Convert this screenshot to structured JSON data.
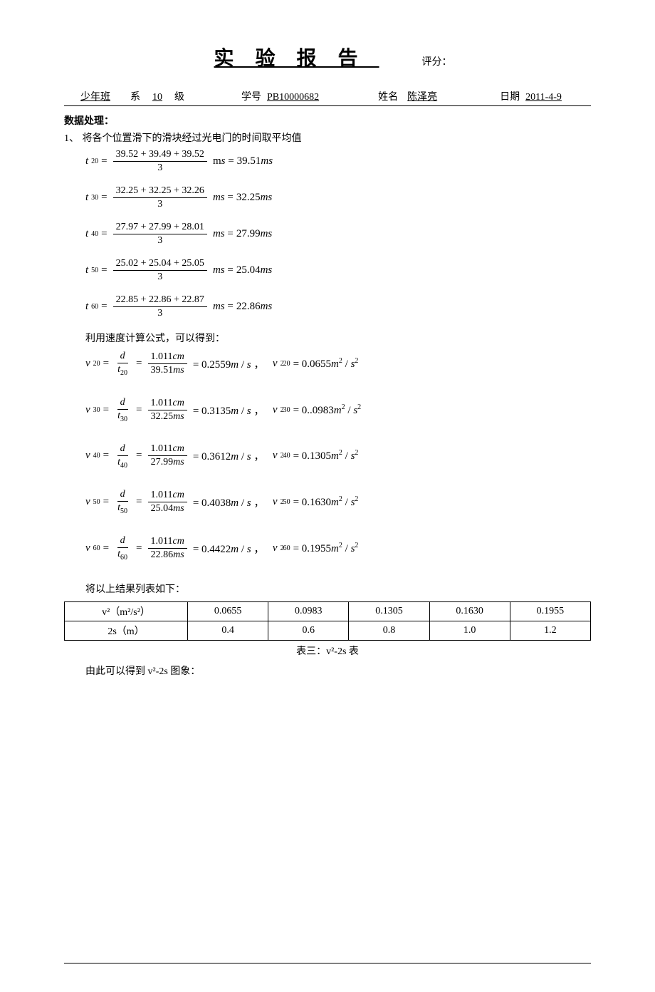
{
  "header": {
    "title": "实验报告",
    "score_label": "评分："
  },
  "info": {
    "dept_value": "少年班",
    "dept_suffix": "系",
    "grade_value": "10",
    "grade_suffix": "级",
    "sid_label": "学号",
    "sid_value": "PB10000682",
    "name_label": "姓名",
    "name_value": "陈泽亮",
    "date_label": "日期",
    "date_value": "2011-4-9"
  },
  "section1_title": "数据处理：",
  "item1_num": "1、",
  "item1_text": "将各个位置滑下的滑块经过光电门的时间取平均值",
  "t_avg": [
    {
      "sub": "20",
      "nums": "39.52 + 39.49 + 39.52",
      "den": "3",
      "unit_in": "m",
      "result": "39.51"
    },
    {
      "sub": "30",
      "nums": "32.25 + 32.25 + 32.26",
      "den": "3",
      "unit_in": "",
      "result": "32.25"
    },
    {
      "sub": "40",
      "nums": "27.97 + 27.99 + 28.01",
      "den": "3",
      "unit_in": "",
      "result": "27.99"
    },
    {
      "sub": "50",
      "nums": "25.02 + 25.04 + 25.05",
      "den": "3",
      "unit_in": "",
      "result": "25.04"
    },
    {
      "sub": "60",
      "nums": "22.85 + 22.86 + 22.87",
      "den": "3",
      "unit_in": "",
      "result": "22.86"
    }
  ],
  "speed_intro": "利用速度计算公式，可以得到：",
  "v_calc": [
    {
      "sub": "20",
      "d_val": "1.011",
      "t_val": "39.51",
      "v_res": "0.2559",
      "v2_res": "0.0655"
    },
    {
      "sub": "30",
      "d_val": "1.011",
      "t_val": "32.25",
      "v_res": "0.3135",
      "v2_res": "0..0983"
    },
    {
      "sub": "40",
      "d_val": "1.011",
      "t_val": "27.99",
      "v_res": "0.3612",
      "v2_res": "0.1305"
    },
    {
      "sub": "50",
      "d_val": "1.011",
      "t_val": "25.04",
      "v_res": "0.4038",
      "v2_res": "0.1630"
    },
    {
      "sub": "60",
      "d_val": "1.011",
      "t_val": "22.86",
      "v_res": "0.4422",
      "v2_res": "0.1955"
    }
  ],
  "table_intro": "将以上结果列表如下：",
  "table": {
    "row1_head": "v²（m²/s²）",
    "row1": [
      "0.0655",
      "0.0983",
      "0.1305",
      "0.1630",
      "0.1955"
    ],
    "row2_head": "2s（m）",
    "row2": [
      "0.4",
      "0.6",
      "0.8",
      "1.0",
      "1.2"
    ],
    "caption": "表三：v²-2s 表"
  },
  "chart_intro": "由此可以得到 v²-2s 图象："
}
